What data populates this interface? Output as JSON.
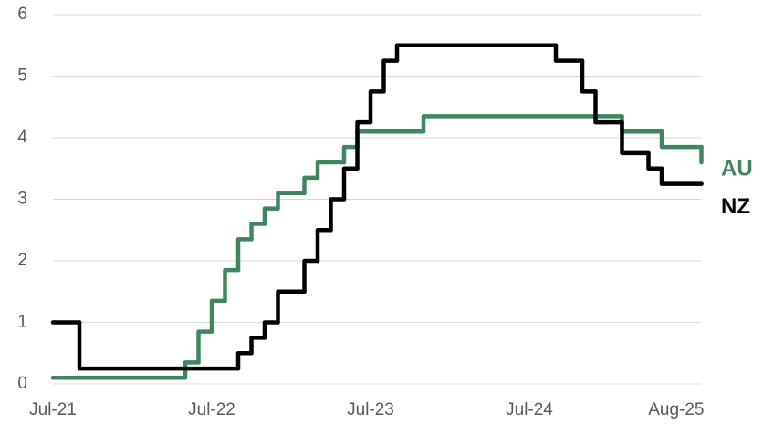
{
  "chart_data": {
    "type": "line",
    "step": true,
    "grid": true,
    "xlim": [
      0,
      49
    ],
    "xticks": [
      {
        "value": 0,
        "label": "Jul-21"
      },
      {
        "value": 12,
        "label": "Jul-22"
      },
      {
        "value": 24,
        "label": "Jul-23"
      },
      {
        "value": 36,
        "label": "Jul-24"
      },
      {
        "value": 49,
        "label": "Aug-25"
      }
    ],
    "ylim": [
      0,
      6
    ],
    "yticks": [
      0,
      1,
      2,
      3,
      4,
      5,
      6
    ],
    "series": [
      {
        "name": "AU",
        "color": "#3f8660",
        "x": [
          0,
          10,
          11,
          12,
          13,
          14,
          15,
          16,
          17,
          19,
          20,
          22,
          23,
          28,
          43,
          46,
          49
        ],
        "values": [
          0.1,
          0.35,
          0.85,
          1.35,
          1.85,
          2.35,
          2.6,
          2.85,
          3.1,
          3.35,
          3.6,
          3.85,
          4.1,
          4.35,
          4.1,
          3.85,
          3.6
        ]
      },
      {
        "name": "NZ",
        "color": "#000000",
        "x": [
          0,
          2,
          14,
          15,
          16,
          17,
          19,
          20,
          21,
          22,
          23,
          24,
          25,
          26,
          38,
          40,
          41,
          43,
          45,
          46,
          49
        ],
        "values": [
          1.0,
          0.25,
          0.5,
          0.75,
          1.0,
          1.5,
          2.0,
          2.5,
          3.0,
          3.5,
          4.25,
          4.75,
          5.25,
          5.5,
          5.25,
          4.75,
          4.25,
          3.75,
          3.5,
          3.25,
          3.25
        ]
      }
    ]
  }
}
